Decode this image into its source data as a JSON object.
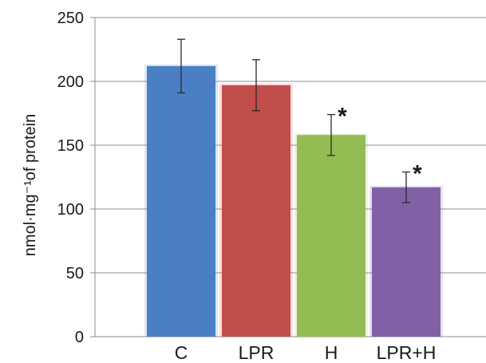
{
  "chart_data": {
    "type": "bar",
    "categories": [
      "C",
      "LPR",
      "H",
      "LPR+H"
    ],
    "values": [
      212,
      197,
      158,
      117
    ],
    "error": [
      21,
      20,
      16,
      12
    ],
    "significance": [
      "",
      "",
      "*",
      "*"
    ],
    "colors": [
      "#4a7fc4",
      "#c24e4b",
      "#93bc52",
      "#8061a5"
    ],
    "ylabel": "nmol·mg⁻¹of protein",
    "ylim": [
      0,
      250
    ],
    "yticks": [
      0,
      50,
      100,
      150,
      200,
      250
    ],
    "grid": true,
    "legend": "none"
  }
}
